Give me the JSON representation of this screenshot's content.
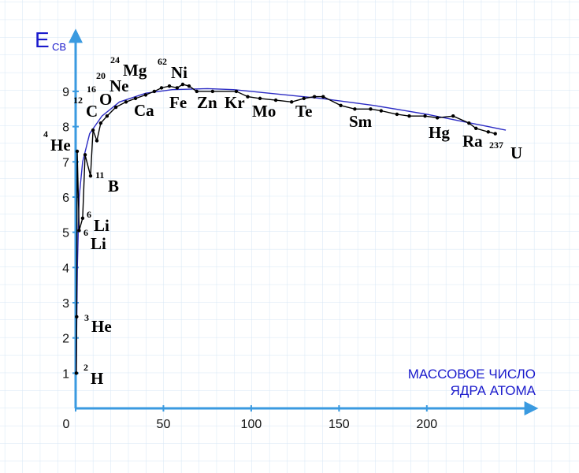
{
  "chart_data": {
    "type": "line",
    "y_label": "E",
    "y_label_sub": "СВ",
    "x_label": [
      "МАССОВОЕ ЧИСЛО",
      "ЯДРА АТОМА"
    ],
    "xlim": [
      0,
      262
    ],
    "xticks": [
      0,
      50,
      100,
      150,
      200
    ],
    "ylim": [
      0,
      10.7
    ],
    "yticks": [
      1,
      2,
      3,
      4,
      5,
      6,
      7,
      8,
      9
    ],
    "axis_color": "#3a9ae0",
    "label_color": "#1a1acc",
    "grid": true,
    "series": [
      {
        "color": "#000000",
        "markers": true,
        "x": [
          0.4,
          0.6,
          0.9,
          2.0,
          4.0,
          5.4,
          8.5,
          9.9,
          12.1,
          14.3,
          17.9,
          22.9,
          28.7,
          34.1,
          39.9,
          44.8,
          48.9,
          53.4,
          57.8,
          61,
          64.6,
          69,
          78,
          91.5,
          98,
          105,
          114,
          123,
          130,
          136,
          141,
          151,
          159,
          168,
          174,
          183,
          190,
          199,
          206,
          215,
          224,
          228,
          235,
          239
        ],
        "values": [
          1.0,
          2.6,
          7.3,
          5.05,
          5.4,
          7.2,
          6.6,
          7.9,
          7.6,
          8.1,
          8.3,
          8.55,
          8.7,
          8.8,
          8.9,
          9.0,
          9.1,
          9.15,
          9.1,
          9.2,
          9.15,
          9.0,
          9.0,
          9.0,
          8.85,
          8.8,
          8.75,
          8.7,
          8.8,
          8.85,
          8.85,
          8.6,
          8.5,
          8.5,
          8.45,
          8.35,
          8.3,
          8.3,
          8.25,
          8.3,
          8.1,
          7.95,
          7.85,
          7.8
        ]
      },
      {
        "color": "#2c2cc4",
        "markers": false,
        "x": [
          0.3,
          1,
          2,
          4,
          8,
          15,
          25,
          40,
          55,
          75,
          90,
          110,
          140,
          170,
          200,
          220,
          235,
          245
        ],
        "values": [
          1.0,
          4.0,
          6.0,
          7.0,
          7.8,
          8.3,
          8.7,
          8.95,
          9.05,
          9.08,
          9.05,
          8.95,
          8.8,
          8.6,
          8.35,
          8.15,
          8.0,
          7.9
        ]
      }
    ],
    "annotations": [
      {
        "mass": "2",
        "symbol": "H"
      },
      {
        "mass": "3",
        "symbol": "He"
      },
      {
        "mass": "6",
        "symbol": "Li"
      },
      {
        "mass": "6",
        "symbol": "Li"
      },
      {
        "mass": "11",
        "symbol": "B"
      },
      {
        "mass": "4",
        "symbol": "He"
      },
      {
        "mass": "12",
        "symbol": "C"
      },
      {
        "mass": "16",
        "symbol": "O"
      },
      {
        "mass": "20",
        "symbol": "Ne"
      },
      {
        "mass": "24",
        "symbol": "Mg"
      },
      {
        "mass": "62",
        "symbol": "Ni"
      },
      {
        "symbol": "Ca"
      },
      {
        "symbol": "Fe"
      },
      {
        "symbol": "Zn"
      },
      {
        "symbol": "Kr"
      },
      {
        "symbol": "Mo"
      },
      {
        "symbol": "Te"
      },
      {
        "symbol": "Sm"
      },
      {
        "symbol": "Hg"
      },
      {
        "symbol": "Ra"
      },
      {
        "mass": "237",
        "symbol": "U"
      }
    ]
  }
}
